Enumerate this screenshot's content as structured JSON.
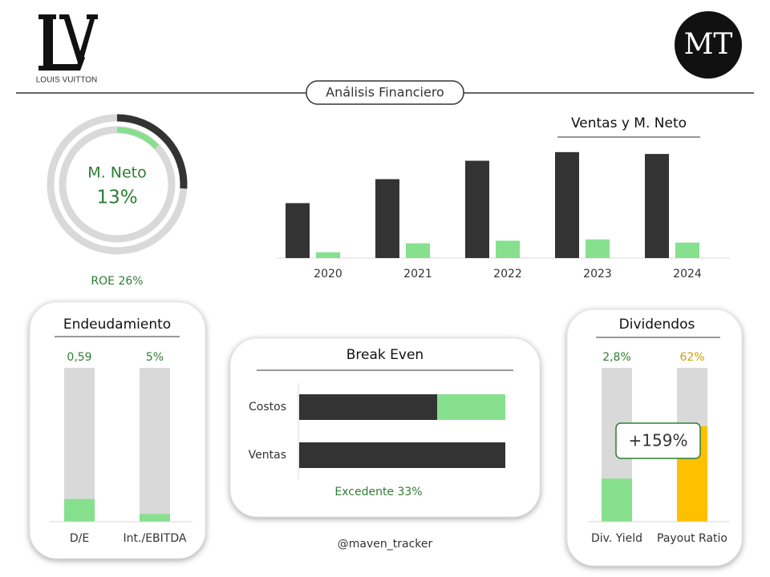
{
  "header": {
    "brand": "LOUIS VUITTON",
    "badge": "MT",
    "section": "Análisis Financiero",
    "credit": "@maven_tracker"
  },
  "chart_data": [
    {
      "type": "donut",
      "title": "M. Neto",
      "values": [
        13,
        26
      ],
      "value_labels": [
        "13%",
        "ROE 26%"
      ],
      "colors": [
        "#86e08e",
        "#333333"
      ],
      "ylim": [
        0,
        100
      ]
    },
    {
      "type": "bar",
      "title": "Ventas y M. Neto",
      "categories": [
        "2020",
        "2021",
        "2022",
        "2023",
        "2024"
      ],
      "series": [
        {
          "color": "#333333",
          "values": [
            44.7,
            64.2,
            79.2,
            86.2,
            84.7
          ]
        },
        {
          "color": "#86e08e",
          "values": [
            4.7,
            12.0,
            14.1,
            15.2,
            12.6
          ]
        }
      ],
      "ylim": [
        0,
        90
      ]
    },
    {
      "type": "progress",
      "title": "Endeudamiento",
      "categories": [
        "D/E",
        "Int./EBITDA"
      ],
      "values": [
        0.59,
        5
      ],
      "value_labels": [
        "0,59",
        "5%"
      ],
      "ylims": [
        [
          0,
          4
        ],
        [
          0,
          100
        ]
      ],
      "colors": [
        "#86e08e",
        "#86e08e"
      ],
      "label_colors": [
        "#2e7d32",
        "#2e7d32"
      ]
    },
    {
      "type": "hbar",
      "title": "Break Even",
      "categories": [
        "Costos",
        "Ventas"
      ],
      "series": [
        {
          "color": "#333333",
          "values": [
            67,
            100
          ]
        },
        {
          "color": "#86e08e",
          "values": [
            33,
            null
          ]
        }
      ],
      "xlim": [
        0,
        100
      ],
      "annotation": "Excedente 33%"
    },
    {
      "type": "progress",
      "title": "Dividendos",
      "categories": [
        "Div. Yield",
        "Payout Ratio"
      ],
      "values": [
        2.8,
        62
      ],
      "value_labels": [
        "2,8%",
        "62%"
      ],
      "ylims": [
        [
          0,
          10
        ],
        [
          0,
          100
        ]
      ],
      "colors": [
        "#86e08e",
        "#ffc000"
      ],
      "label_colors": [
        "#2e7d32",
        "#c9a000"
      ],
      "annotation": "+159%"
    }
  ]
}
